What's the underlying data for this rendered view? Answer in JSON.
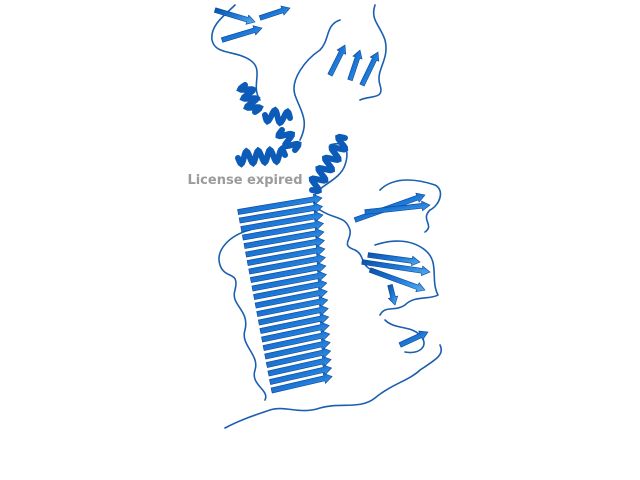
{
  "watermark": "License expired"
}
